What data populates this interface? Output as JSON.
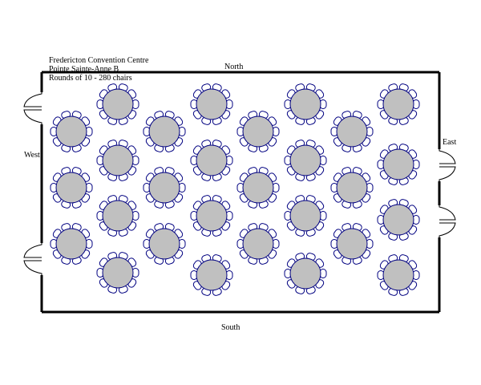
{
  "title": {
    "venue": "Fredericton Convention Centre",
    "room": "Pointe Sainte-Anne B",
    "setup": "Rounds of 10 - 280 chairs"
  },
  "walls": {
    "north": "North",
    "south": "South",
    "east": "East",
    "west": "West"
  },
  "layout": {
    "table_count": 28,
    "chairs_per_table": 10,
    "table_color": "#c0c0c0",
    "chair_stroke": "#000080",
    "wall_color": "#000000"
  }
}
